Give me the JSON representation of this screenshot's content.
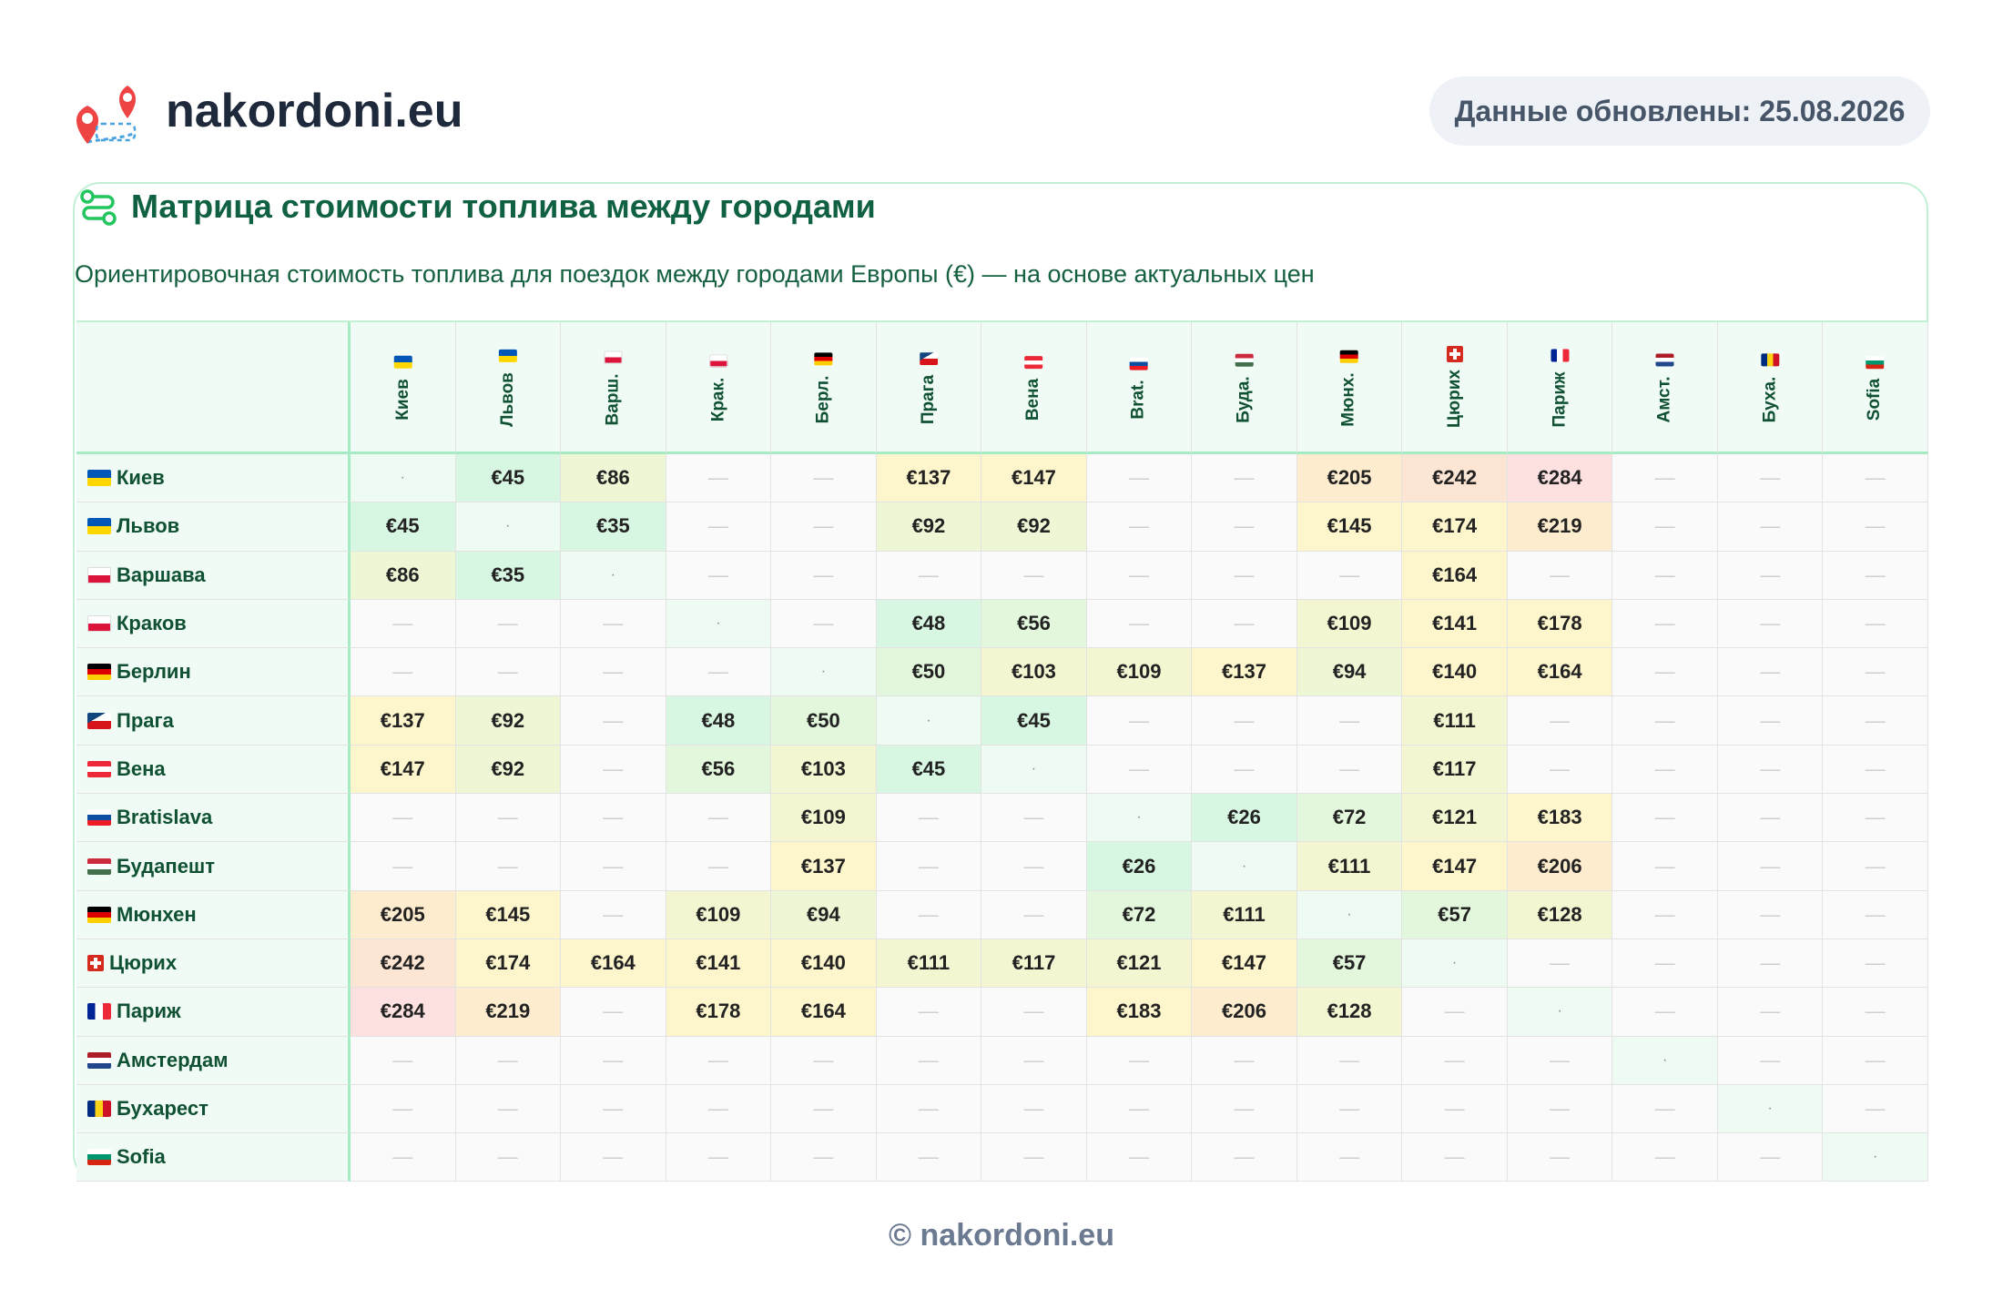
{
  "header": {
    "site_name": "nakordoni.eu",
    "updated": "Данные обновлены: 25.08.2026"
  },
  "card": {
    "title": "Матрица стоимости топлива между городами",
    "subtitle": "Ориентировочная стоимость топлива для поездок между городами Европы (€) — на основе актуальных цен"
  },
  "table": {
    "columns": [
      "Киев",
      "Львов",
      "Варш.",
      "Крак.",
      "Берл.",
      "Прага",
      "Вена",
      "Brat.",
      "Буда.",
      "Мюнх.",
      "Цюрих",
      "Париж",
      "Амст.",
      "Буха.",
      "Sofia"
    ],
    "rows": [
      {
        "label": "Киев",
        "cells": [
          "·",
          "€45",
          "€86",
          "—",
          "—",
          "€137",
          "€147",
          "—",
          "—",
          "€205",
          "€242",
          "€284",
          "—",
          "—",
          "—"
        ]
      },
      {
        "label": "Львов",
        "cells": [
          "€45",
          "·",
          "€35",
          "—",
          "—",
          "€92",
          "€92",
          "—",
          "—",
          "€145",
          "€174",
          "€219",
          "—",
          "—",
          "—"
        ]
      },
      {
        "label": "Варшава",
        "cells": [
          "€86",
          "€35",
          "·",
          "—",
          "—",
          "—",
          "—",
          "—",
          "—",
          "—",
          "€164",
          "—",
          "—",
          "—",
          "—"
        ]
      },
      {
        "label": "Краков",
        "cells": [
          "—",
          "—",
          "—",
          "·",
          "—",
          "€48",
          "€56",
          "—",
          "—",
          "€109",
          "€141",
          "€178",
          "—",
          "—",
          "—"
        ]
      },
      {
        "label": "Берлин",
        "cells": [
          "—",
          "—",
          "—",
          "—",
          "·",
          "€50",
          "€103",
          "€109",
          "€137",
          "€94",
          "€140",
          "€164",
          "—",
          "—",
          "—"
        ]
      },
      {
        "label": "Прага",
        "cells": [
          "€137",
          "€92",
          "—",
          "€48",
          "€50",
          "·",
          "€45",
          "—",
          "—",
          "—",
          "€111",
          "—",
          "—",
          "—",
          "—"
        ]
      },
      {
        "label": "Вена",
        "cells": [
          "€147",
          "€92",
          "—",
          "€56",
          "€103",
          "€45",
          "·",
          "—",
          "—",
          "—",
          "€117",
          "—",
          "—",
          "—",
          "—"
        ]
      },
      {
        "label": "Bratislava",
        "cells": [
          "—",
          "—",
          "—",
          "—",
          "€109",
          "—",
          "—",
          "·",
          "€26",
          "€72",
          "€121",
          "€183",
          "—",
          "—",
          "—"
        ]
      },
      {
        "label": "Будапешт",
        "cells": [
          "—",
          "—",
          "—",
          "—",
          "€137",
          "—",
          "—",
          "€26",
          "·",
          "€111",
          "€147",
          "€206",
          "—",
          "—",
          "—"
        ]
      },
      {
        "label": "Мюнхен",
        "cells": [
          "€205",
          "€145",
          "—",
          "€109",
          "€94",
          "—",
          "—",
          "€72",
          "€111",
          "·",
          "€57",
          "€128",
          "—",
          "—",
          "—"
        ]
      },
      {
        "label": "Цюрих",
        "cells": [
          "€242",
          "€174",
          "€164",
          "€141",
          "€140",
          "€111",
          "€117",
          "€121",
          "€147",
          "€57",
          "·",
          "—",
          "—",
          "—",
          "—"
        ]
      },
      {
        "label": "Париж",
        "cells": [
          "€284",
          "€219",
          "—",
          "€178",
          "€164",
          "—",
          "—",
          "€183",
          "€206",
          "€128",
          "—",
          "·",
          "—",
          "—",
          "—"
        ]
      },
      {
        "label": "Амстердам",
        "cells": [
          "—",
          "—",
          "—",
          "—",
          "—",
          "—",
          "—",
          "—",
          "—",
          "—",
          "—",
          "—",
          "·",
          "—",
          "—"
        ]
      },
      {
        "label": "Бухарест",
        "cells": [
          "—",
          "—",
          "—",
          "—",
          "—",
          "—",
          "—",
          "—",
          "—",
          "—",
          "—",
          "—",
          "—",
          "·",
          "—"
        ]
      },
      {
        "label": "Sofia",
        "cells": [
          "—",
          "—",
          "—",
          "—",
          "—",
          "—",
          "—",
          "—",
          "—",
          "—",
          "—",
          "—",
          "—",
          "—",
          "·"
        ]
      }
    ]
  },
  "footer": {
    "copyright": "© nakordoni.eu"
  }
}
